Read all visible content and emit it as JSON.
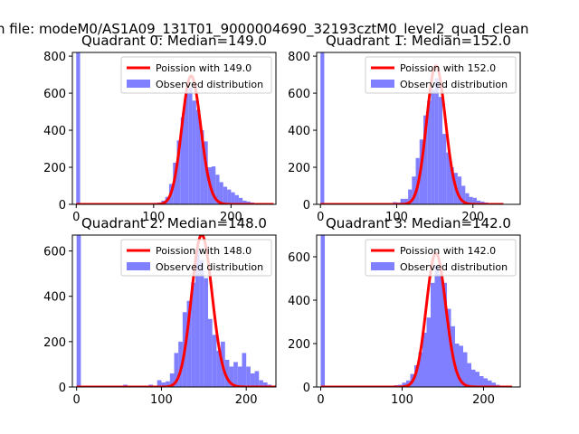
{
  "figure": {
    "suptitle": "n file: modeM0/AS1A09_131T01_9000004690_32193cztM0_level2_quad_clean",
    "colors": {
      "poisson": "#ff0000",
      "hist": "#7f7fff",
      "axis": "#000000",
      "background": "#ffffff"
    }
  },
  "chart_data": [
    {
      "type": "bar+line",
      "title": "Quadrant 0: Median=149.0",
      "xticks": [
        0,
        100,
        200
      ],
      "xlim": [
        -5,
        258
      ],
      "yticks": [
        0,
        200,
        400,
        600,
        800
      ],
      "ylim": [
        0,
        820
      ],
      "median": 149.0,
      "legend": {
        "poisson_label": "Poission with 149.0",
        "hist_label": "Observed distribution",
        "placement": "upper right"
      },
      "hist": {
        "bin_width": 5,
        "bins": [
          [
            0,
            820
          ],
          [
            35,
            1
          ],
          [
            90,
            4
          ],
          [
            100,
            8
          ],
          [
            105,
            10
          ],
          [
            110,
            20
          ],
          [
            115,
            40
          ],
          [
            120,
            110
          ],
          [
            125,
            225
          ],
          [
            130,
            345
          ],
          [
            135,
            470
          ],
          [
            140,
            600
          ],
          [
            145,
            630
          ],
          [
            150,
            560
          ],
          [
            155,
            510
          ],
          [
            160,
            400
          ],
          [
            165,
            340
          ],
          [
            170,
            200
          ],
          [
            175,
            205
          ],
          [
            180,
            160
          ],
          [
            185,
            120
          ],
          [
            190,
            95
          ],
          [
            195,
            80
          ],
          [
            200,
            65
          ],
          [
            205,
            50
          ],
          [
            210,
            35
          ],
          [
            215,
            20
          ],
          [
            220,
            15
          ],
          [
            225,
            10
          ],
          [
            230,
            6
          ],
          [
            235,
            4
          ],
          [
            240,
            2
          ]
        ]
      }
    },
    {
      "type": "bar+line",
      "title": "Quadrant 1: Median=152.0",
      "xticks": [
        0,
        100,
        200
      ],
      "xlim": [
        -5,
        262
      ],
      "yticks": [
        0,
        200,
        400,
        600,
        800
      ],
      "ylim": [
        0,
        820
      ],
      "median": 152.0,
      "legend": {
        "poisson_label": "Poission with 152.0",
        "hist_label": "Observed distribution",
        "placement": "upper right"
      },
      "hist": {
        "bin_width": 5,
        "bins": [
          [
            0,
            820
          ],
          [
            95,
            12
          ],
          [
            100,
            10
          ],
          [
            105,
            30
          ],
          [
            110,
            30
          ],
          [
            115,
            80
          ],
          [
            120,
            150
          ],
          [
            125,
            250
          ],
          [
            130,
            350
          ],
          [
            135,
            480
          ],
          [
            140,
            560
          ],
          [
            145,
            620
          ],
          [
            150,
            680
          ],
          [
            155,
            580
          ],
          [
            160,
            380
          ],
          [
            165,
            280
          ],
          [
            170,
            200
          ],
          [
            175,
            170
          ],
          [
            180,
            150
          ],
          [
            185,
            100
          ],
          [
            190,
            60
          ],
          [
            195,
            40
          ],
          [
            200,
            35
          ],
          [
            205,
            20
          ],
          [
            210,
            15
          ],
          [
            215,
            10
          ],
          [
            220,
            5
          ],
          [
            225,
            2
          ]
        ]
      }
    },
    {
      "type": "bar+line",
      "title": "Quadrant 2: Median=148.0",
      "xticks": [
        0,
        100,
        200
      ],
      "xlim": [
        -5,
        235
      ],
      "yticks": [
        0,
        200,
        400,
        600
      ],
      "ylim": [
        0,
        670
      ],
      "median": 148.0,
      "legend": {
        "poisson_label": "Poission with 148.0",
        "hist_label": "Observed distribution",
        "placement": "upper right"
      },
      "hist": {
        "bin_width": 5,
        "bins": [
          [
            0,
            670
          ],
          [
            30,
            2
          ],
          [
            55,
            10
          ],
          [
            70,
            5
          ],
          [
            80,
            5
          ],
          [
            85,
            10
          ],
          [
            95,
            30
          ],
          [
            100,
            20
          ],
          [
            105,
            25
          ],
          [
            110,
            60
          ],
          [
            115,
            150
          ],
          [
            120,
            200
          ],
          [
            125,
            330
          ],
          [
            130,
            380
          ],
          [
            135,
            460
          ],
          [
            140,
            610
          ],
          [
            145,
            560
          ],
          [
            150,
            480
          ],
          [
            155,
            300
          ],
          [
            160,
            230
          ],
          [
            165,
            160
          ],
          [
            170,
            200
          ],
          [
            175,
            120
          ],
          [
            180,
            90
          ],
          [
            185,
            110
          ],
          [
            190,
            90
          ],
          [
            195,
            150
          ],
          [
            200,
            90
          ],
          [
            205,
            60
          ],
          [
            210,
            70
          ],
          [
            215,
            30
          ],
          [
            220,
            20
          ],
          [
            225,
            10
          ]
        ]
      }
    },
    {
      "type": "bar+line",
      "title": "Quadrant 3: Median=142.0",
      "xticks": [
        0,
        100,
        200
      ],
      "xlim": [
        -5,
        245
      ],
      "yticks": [
        0,
        200,
        400,
        600
      ],
      "ylim": [
        0,
        700
      ],
      "median": 142.0,
      "legend": {
        "poisson_label": "Poission with 142.0",
        "hist_label": "Observed distribution",
        "placement": "upper right"
      },
      "hist": {
        "bin_width": 5,
        "bins": [
          [
            0,
            700
          ],
          [
            40,
            2
          ],
          [
            80,
            5
          ],
          [
            90,
            8
          ],
          [
            95,
            10
          ],
          [
            100,
            20
          ],
          [
            105,
            30
          ],
          [
            110,
            60
          ],
          [
            115,
            100
          ],
          [
            120,
            160
          ],
          [
            125,
            250
          ],
          [
            130,
            320
          ],
          [
            135,
            480
          ],
          [
            140,
            560
          ],
          [
            145,
            520
          ],
          [
            150,
            480
          ],
          [
            155,
            360
          ],
          [
            160,
            280
          ],
          [
            165,
            200
          ],
          [
            170,
            190
          ],
          [
            175,
            160
          ],
          [
            180,
            110
          ],
          [
            185,
            80
          ],
          [
            190,
            70
          ],
          [
            195,
            50
          ],
          [
            200,
            40
          ],
          [
            205,
            30
          ],
          [
            210,
            20
          ],
          [
            215,
            10
          ],
          [
            220,
            5
          ]
        ]
      }
    }
  ]
}
